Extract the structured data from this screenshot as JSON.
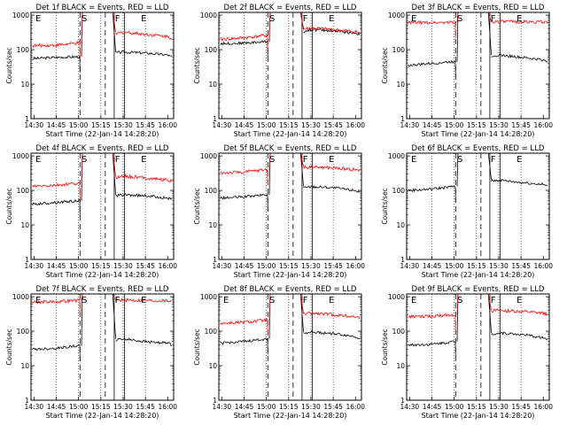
{
  "figure": {
    "panel_titles": [
      "Det 1f BLACK = Events, RED = LLD",
      "Det 2f BLACK = Events, RED = LLD",
      "Det 3f BLACK = Events, RED = LLD",
      "Det 4f BLACK = Events, RED = LLD",
      "Det 5f BLACK = Events, RED = LLD",
      "Det 6f BLACK = Events, RED = LLD",
      "Det 7f BLACK = Events, RED = LLD",
      "Det 8f BLACK = Events, RED = LLD",
      "Det 9f BLACK = Events, RED = LLD"
    ],
    "xlabel": "Start Time (22-Jan-14 14:28:20)",
    "ylabel": "Counts/sec",
    "x_tick_labels": [
      "14:30",
      "14:45",
      "15:00",
      "15:15",
      "15:30",
      "15:45",
      "16:00"
    ],
    "y_tick_labels": [
      "1",
      "10",
      "100",
      "1000"
    ],
    "colors": {
      "events": "#000000",
      "lld": "#ff0000"
    }
  },
  "chart_data": [
    {
      "type": "line",
      "title": "Det 1f BLACK = Events, RED = LLD",
      "xlabel": "Start Time (22-Jan-14 14:28:20)",
      "ylabel": "Counts/sec",
      "xlim": [
        "14:28",
        "16:04"
      ],
      "ylim": [
        1,
        1200
      ],
      "y_scale": "log",
      "grid": "dotted vertical",
      "x": [
        "14:30",
        "14:45",
        "15:00",
        "15:05",
        "15:15",
        "15:25",
        "15:30",
        "15:45",
        "16:00",
        "16:03"
      ],
      "series": [
        {
          "name": "BLACK = Events",
          "color": "#000000",
          "values": [
            55,
            60,
            62,
            null,
            null,
            null,
            85,
            80,
            70,
            60
          ]
        },
        {
          "name": "RED = LLD",
          "color": "#ff0000",
          "values": [
            130,
            135,
            155,
            null,
            null,
            null,
            320,
            280,
            240,
            210
          ]
        }
      ],
      "annotations": [
        "E",
        "S",
        "F",
        "E"
      ],
      "markers": [
        "15:01 dashed",
        "15:18 dashed",
        "15:24 solid",
        "15:31 solid"
      ]
    },
    {
      "type": "line",
      "title": "Det 2f BLACK = Events, RED = LLD",
      "xlabel": "Start Time (22-Jan-14 14:28:20)",
      "ylabel": "Counts/sec",
      "xlim": [
        "14:28",
        "16:04"
      ],
      "ylim": [
        1,
        1200
      ],
      "y_scale": "log",
      "grid": "dotted vertical",
      "x": [
        "14:30",
        "14:45",
        "15:00",
        "15:05",
        "15:15",
        "15:25",
        "15:30",
        "15:45",
        "16:00",
        "16:03"
      ],
      "series": [
        {
          "name": "BLACK = Events",
          "color": "#000000",
          "values": [
            150,
            155,
            170,
            null,
            null,
            null,
            380,
            350,
            300,
            280
          ]
        },
        {
          "name": "RED = LLD",
          "color": "#ff0000",
          "values": [
            200,
            220,
            260,
            null,
            null,
            null,
            420,
            380,
            330,
            300
          ]
        }
      ],
      "annotations": [
        "S",
        "F",
        "E"
      ],
      "markers": [
        "15:01 dashed",
        "15:18 dashed",
        "15:24 solid",
        "15:31 solid"
      ]
    },
    {
      "type": "line",
      "title": "Det 3f BLACK = Events, RED = LLD",
      "xlabel": "Start Time (22-Jan-14 14:28:20)",
      "ylabel": "Counts/sec",
      "xlim": [
        "14:28",
        "16:04"
      ],
      "ylim": [
        1,
        1200
      ],
      "y_scale": "log",
      "grid": "dotted vertical",
      "x": [
        "14:30",
        "14:45",
        "15:00",
        "15:05",
        "15:15",
        "15:25",
        "15:30",
        "15:45",
        "16:00",
        "16:03"
      ],
      "series": [
        {
          "name": "BLACK = Events",
          "color": "#000000",
          "values": [
            35,
            40,
            45,
            null,
            null,
            null,
            70,
            60,
            50,
            45
          ]
        },
        {
          "name": "RED = LLD",
          "color": "#ff0000",
          "values": [
            600,
            610,
            620,
            null,
            null,
            null,
            650,
            640,
            630,
            620
          ]
        }
      ],
      "annotations": [
        "E",
        "S",
        "F",
        "E"
      ],
      "markers": [
        "15:01 dashed",
        "15:18 dashed",
        "15:24 solid",
        "15:31 solid"
      ]
    },
    {
      "type": "line",
      "title": "Det 4f BLACK = Events, RED = LLD",
      "xlabel": "Start Time (22-Jan-14 14:28:20)",
      "ylabel": "Counts/sec",
      "xlim": [
        "14:28",
        "16:04"
      ],
      "ylim": [
        1,
        1200
      ],
      "y_scale": "log",
      "grid": "dotted vertical",
      "x": [
        "14:30",
        "14:45",
        "15:00",
        "15:05",
        "15:15",
        "15:25",
        "15:30",
        "15:45",
        "16:00",
        "16:03"
      ],
      "series": [
        {
          "name": "BLACK = Events",
          "color": "#000000",
          "values": [
            40,
            45,
            50,
            null,
            null,
            null,
            75,
            70,
            60,
            55
          ]
        },
        {
          "name": "RED = LLD",
          "color": "#ff0000",
          "values": [
            130,
            140,
            160,
            null,
            null,
            null,
            260,
            230,
            200,
            180
          ]
        }
      ],
      "annotations": [
        "E",
        "S",
        "F",
        "E"
      ],
      "markers": [
        "15:01 dashed",
        "15:18 dashed",
        "15:24 solid",
        "15:31 solid"
      ]
    },
    {
      "type": "line",
      "title": "Det 5f BLACK = Events, RED = LLD",
      "xlabel": "Start Time (22-Jan-14 14:28:20)",
      "ylabel": "Counts/sec",
      "xlim": [
        "14:28",
        "16:04"
      ],
      "ylim": [
        1,
        1200
      ],
      "y_scale": "log",
      "grid": "dotted vertical",
      "x": [
        "14:30",
        "14:45",
        "15:00",
        "15:05",
        "15:15",
        "15:25",
        "15:30",
        "15:45",
        "16:00",
        "16:03"
      ],
      "series": [
        {
          "name": "BLACK = Events",
          "color": "#000000",
          "values": [
            60,
            65,
            75,
            null,
            null,
            null,
            130,
            120,
            100,
            90
          ]
        },
        {
          "name": "RED = LLD",
          "color": "#ff0000",
          "values": [
            320,
            340,
            400,
            null,
            null,
            null,
            480,
            450,
            400,
            380
          ]
        }
      ],
      "annotations": [
        "S",
        "F",
        "E"
      ],
      "markers": [
        "15:01 dashed",
        "15:18 dashed",
        "15:24 solid",
        "15:31 solid"
      ]
    },
    {
      "type": "line",
      "title": "Det 6f BLACK = Events, RED = LLD",
      "xlabel": "Start Time (22-Jan-14 14:28:20)",
      "ylabel": "Counts/sec",
      "xlim": [
        "14:28",
        "16:04"
      ],
      "ylim": [
        1,
        1200
      ],
      "y_scale": "log",
      "grid": "dotted vertical",
      "x": [
        "14:30",
        "14:45",
        "15:00",
        "15:05",
        "15:15",
        "15:25",
        "15:30",
        "15:45",
        "16:00",
        "16:03"
      ],
      "series": [
        {
          "name": "BLACK = Events",
          "color": "#000000",
          "values": [
            100,
            110,
            130,
            null,
            null,
            null,
            200,
            170,
            150,
            130
          ]
        }
      ],
      "annotations": [
        "E",
        "S",
        "F",
        "E"
      ],
      "markers": [
        "15:01 dashed",
        "15:18 dashed",
        "15:24 solid",
        "15:31 solid"
      ]
    },
    {
      "type": "line",
      "title": "Det 7f BLACK = Events, RED = LLD",
      "xlabel": "Start Time (22-Jan-14 14:28:20)",
      "ylabel": "Counts/sec",
      "xlim": [
        "14:28",
        "16:04"
      ],
      "ylim": [
        1,
        1200
      ],
      "y_scale": "log",
      "grid": "dotted vertical",
      "x": [
        "14:30",
        "14:45",
        "15:00",
        "15:05",
        "15:15",
        "15:25",
        "15:30",
        "15:45",
        "16:00",
        "16:03"
      ],
      "series": [
        {
          "name": "BLACK = Events",
          "color": "#000000",
          "values": [
            30,
            32,
            38,
            null,
            null,
            null,
            60,
            50,
            45,
            40
          ]
        },
        {
          "name": "RED = LLD",
          "color": "#ff0000",
          "values": [
            700,
            720,
            780,
            null,
            null,
            null,
            800,
            780,
            760,
            750
          ]
        }
      ],
      "annotations": [
        "E",
        "S",
        "F",
        "E"
      ],
      "markers": [
        "15:01 dashed",
        "15:18 dashed",
        "15:24 solid",
        "15:31 solid"
      ]
    },
    {
      "type": "line",
      "title": "Det 8f BLACK = Events, RED = LLD",
      "xlabel": "Start Time (22-Jan-14 14:28:20)",
      "ylabel": "Counts/sec",
      "xlim": [
        "14:28",
        "16:04"
      ],
      "ylim": [
        1,
        1200
      ],
      "y_scale": "log",
      "grid": "dotted vertical",
      "x": [
        "14:30",
        "14:45",
        "15:00",
        "15:05",
        "15:15",
        "15:25",
        "15:30",
        "15:45",
        "16:00",
        "16:03"
      ],
      "series": [
        {
          "name": "BLACK = Events",
          "color": "#000000",
          "values": [
            45,
            50,
            60,
            null,
            null,
            null,
            95,
            85,
            70,
            60
          ]
        },
        {
          "name": "RED = LLD",
          "color": "#ff0000",
          "values": [
            170,
            180,
            210,
            null,
            null,
            null,
            330,
            300,
            260,
            240
          ]
        }
      ],
      "annotations": [
        "E",
        "S",
        "F",
        "E"
      ],
      "markers": [
        "15:01 dashed",
        "15:18 dashed",
        "15:24 solid",
        "15:31 solid"
      ]
    },
    {
      "type": "line",
      "title": "Det 9f BLACK = Events, RED = LLD",
      "xlabel": "Start Time (22-Jan-14 14:28:20)",
      "ylabel": "Counts/sec",
      "xlim": [
        "14:28",
        "16:04"
      ],
      "ylim": [
        1,
        1200
      ],
      "y_scale": "log",
      "grid": "dotted vertical",
      "x": [
        "14:30",
        "14:45",
        "15:00",
        "15:05",
        "15:15",
        "15:25",
        "15:30",
        "15:45",
        "16:00",
        "16:03"
      ],
      "series": [
        {
          "name": "BLACK = Events",
          "color": "#000000",
          "values": [
            40,
            42,
            50,
            null,
            null,
            null,
            90,
            80,
            65,
            55
          ]
        },
        {
          "name": "RED = LLD",
          "color": "#ff0000",
          "values": [
            260,
            270,
            300,
            null,
            null,
            null,
            400,
            370,
            330,
            310
          ]
        }
      ],
      "annotations": [
        "E",
        "S",
        "F",
        "E"
      ],
      "markers": [
        "15:01 dashed",
        "15:18 dashed",
        "15:24 solid",
        "15:31 solid"
      ]
    }
  ]
}
